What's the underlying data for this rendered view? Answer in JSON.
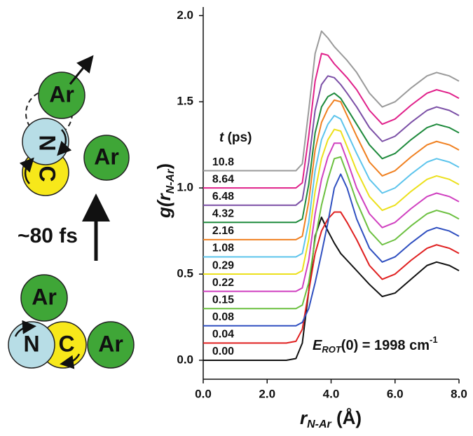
{
  "chart_data": {
    "type": "line",
    "x": [
      0,
      2.6,
      2.9,
      3.1,
      3.3,
      3.5,
      3.7,
      3.9,
      4.1,
      4.3,
      4.5,
      4.8,
      5.2,
      5.6,
      6.0,
      6.5,
      7.0,
      7.3,
      7.7,
      8.0
    ],
    "series": [
      {
        "name": "0.00",
        "color": "#111111",
        "values": [
          0,
          0,
          0.01,
          0.1,
          0.4,
          0.72,
          0.83,
          0.75,
          0.68,
          0.62,
          0.58,
          0.52,
          0.44,
          0.37,
          0.39,
          0.47,
          0.55,
          0.57,
          0.55,
          0.52
        ]
      },
      {
        "name": "0.04",
        "color": "#e02020",
        "values": [
          0.1,
          0.1,
          0.11,
          0.18,
          0.4,
          0.62,
          0.75,
          0.82,
          0.86,
          0.86,
          0.8,
          0.7,
          0.55,
          0.47,
          0.5,
          0.58,
          0.65,
          0.67,
          0.65,
          0.62
        ]
      },
      {
        "name": "0.08",
        "color": "#2f4fc0",
        "values": [
          0.2,
          0.2,
          0.2,
          0.22,
          0.3,
          0.45,
          0.62,
          0.8,
          1.0,
          1.08,
          1.0,
          0.82,
          0.65,
          0.57,
          0.6,
          0.68,
          0.75,
          0.77,
          0.75,
          0.72
        ]
      },
      {
        "name": "0.15",
        "color": "#6cc040",
        "values": [
          0.3,
          0.3,
          0.3,
          0.32,
          0.45,
          0.7,
          0.9,
          1.05,
          1.17,
          1.18,
          1.08,
          0.92,
          0.75,
          0.67,
          0.7,
          0.78,
          0.85,
          0.87,
          0.85,
          0.82
        ]
      },
      {
        "name": "0.22",
        "color": "#d040c0",
        "values": [
          0.4,
          0.4,
          0.4,
          0.42,
          0.58,
          0.85,
          1.05,
          1.18,
          1.26,
          1.26,
          1.16,
          1.0,
          0.85,
          0.77,
          0.8,
          0.88,
          0.95,
          0.97,
          0.95,
          0.92
        ]
      },
      {
        "name": "0.29",
        "color": "#ece01c",
        "values": [
          0.5,
          0.5,
          0.5,
          0.52,
          0.7,
          0.98,
          1.17,
          1.28,
          1.34,
          1.33,
          1.24,
          1.1,
          0.95,
          0.87,
          0.9,
          0.98,
          1.05,
          1.07,
          1.05,
          1.02
        ]
      },
      {
        "name": "1.08",
        "color": "#5cc4ec",
        "values": [
          0.6,
          0.6,
          0.6,
          0.62,
          0.8,
          1.1,
          1.28,
          1.37,
          1.42,
          1.4,
          1.32,
          1.2,
          1.05,
          0.97,
          1.0,
          1.08,
          1.15,
          1.17,
          1.15,
          1.12
        ]
      },
      {
        "name": "2.16",
        "color": "#f08020",
        "values": [
          0.7,
          0.7,
          0.7,
          0.72,
          0.92,
          1.22,
          1.38,
          1.46,
          1.51,
          1.5,
          1.42,
          1.3,
          1.15,
          1.07,
          1.1,
          1.18,
          1.25,
          1.27,
          1.25,
          1.22
        ]
      },
      {
        "name": "4.32",
        "color": "#1e8a3c",
        "values": [
          0.8,
          0.8,
          0.8,
          0.82,
          1.02,
          1.32,
          1.47,
          1.53,
          1.55,
          1.52,
          1.46,
          1.37,
          1.25,
          1.17,
          1.2,
          1.28,
          1.35,
          1.37,
          1.35,
          1.32
        ]
      },
      {
        "name": "6.48",
        "color": "#7b4fa6",
        "values": [
          0.9,
          0.9,
          0.9,
          0.93,
          1.15,
          1.45,
          1.6,
          1.65,
          1.64,
          1.6,
          1.55,
          1.47,
          1.35,
          1.27,
          1.3,
          1.38,
          1.45,
          1.47,
          1.45,
          1.42
        ]
      },
      {
        "name": "8.64",
        "color": "#e0208a",
        "values": [
          1.0,
          1.0,
          1.0,
          1.03,
          1.3,
          1.62,
          1.78,
          1.77,
          1.72,
          1.68,
          1.64,
          1.57,
          1.45,
          1.37,
          1.4,
          1.48,
          1.55,
          1.57,
          1.55,
          1.52
        ]
      },
      {
        "name": "10.8",
        "color": "#9a9a9a",
        "values": [
          1.1,
          1.1,
          1.1,
          1.14,
          1.45,
          1.78,
          1.91,
          1.87,
          1.82,
          1.78,
          1.74,
          1.67,
          1.55,
          1.47,
          1.5,
          1.58,
          1.65,
          1.67,
          1.65,
          1.62
        ]
      }
    ],
    "legend_title": {
      "main": "t",
      "rest": " (ps)"
    },
    "xlabel": {
      "main": "r",
      "sub": "N-Ar",
      "rest": " (Å)"
    },
    "ylabel": {
      "main": "g(r",
      "sub": "N-Ar",
      "rest": ")"
    },
    "annotation": {
      "main": "E",
      "sub": "ROT",
      "rest": "(0) = 1998 cm",
      "sup": "-1"
    },
    "xlim": [
      0,
      8
    ],
    "ylim": [
      -0.11,
      2.05
    ],
    "xticks": [
      {
        "value": 0,
        "label": "0.0"
      },
      {
        "value": 2,
        "label": "2.0"
      },
      {
        "value": 4,
        "label": "4.0"
      },
      {
        "value": 6,
        "label": "6.0"
      },
      {
        "value": 8,
        "label": "8.0"
      }
    ],
    "yticks": [
      {
        "value": 0,
        "label": "0.0"
      },
      {
        "value": 0.5,
        "label": "0.5"
      },
      {
        "value": 1,
        "label": "1.0"
      },
      {
        "value": 1.5,
        "label": "1.5"
      },
      {
        "value": 2,
        "label": "2.0"
      }
    ]
  },
  "diagram": {
    "ar": "Ar",
    "n": "N",
    "c": "C",
    "time": "~80 fs"
  }
}
